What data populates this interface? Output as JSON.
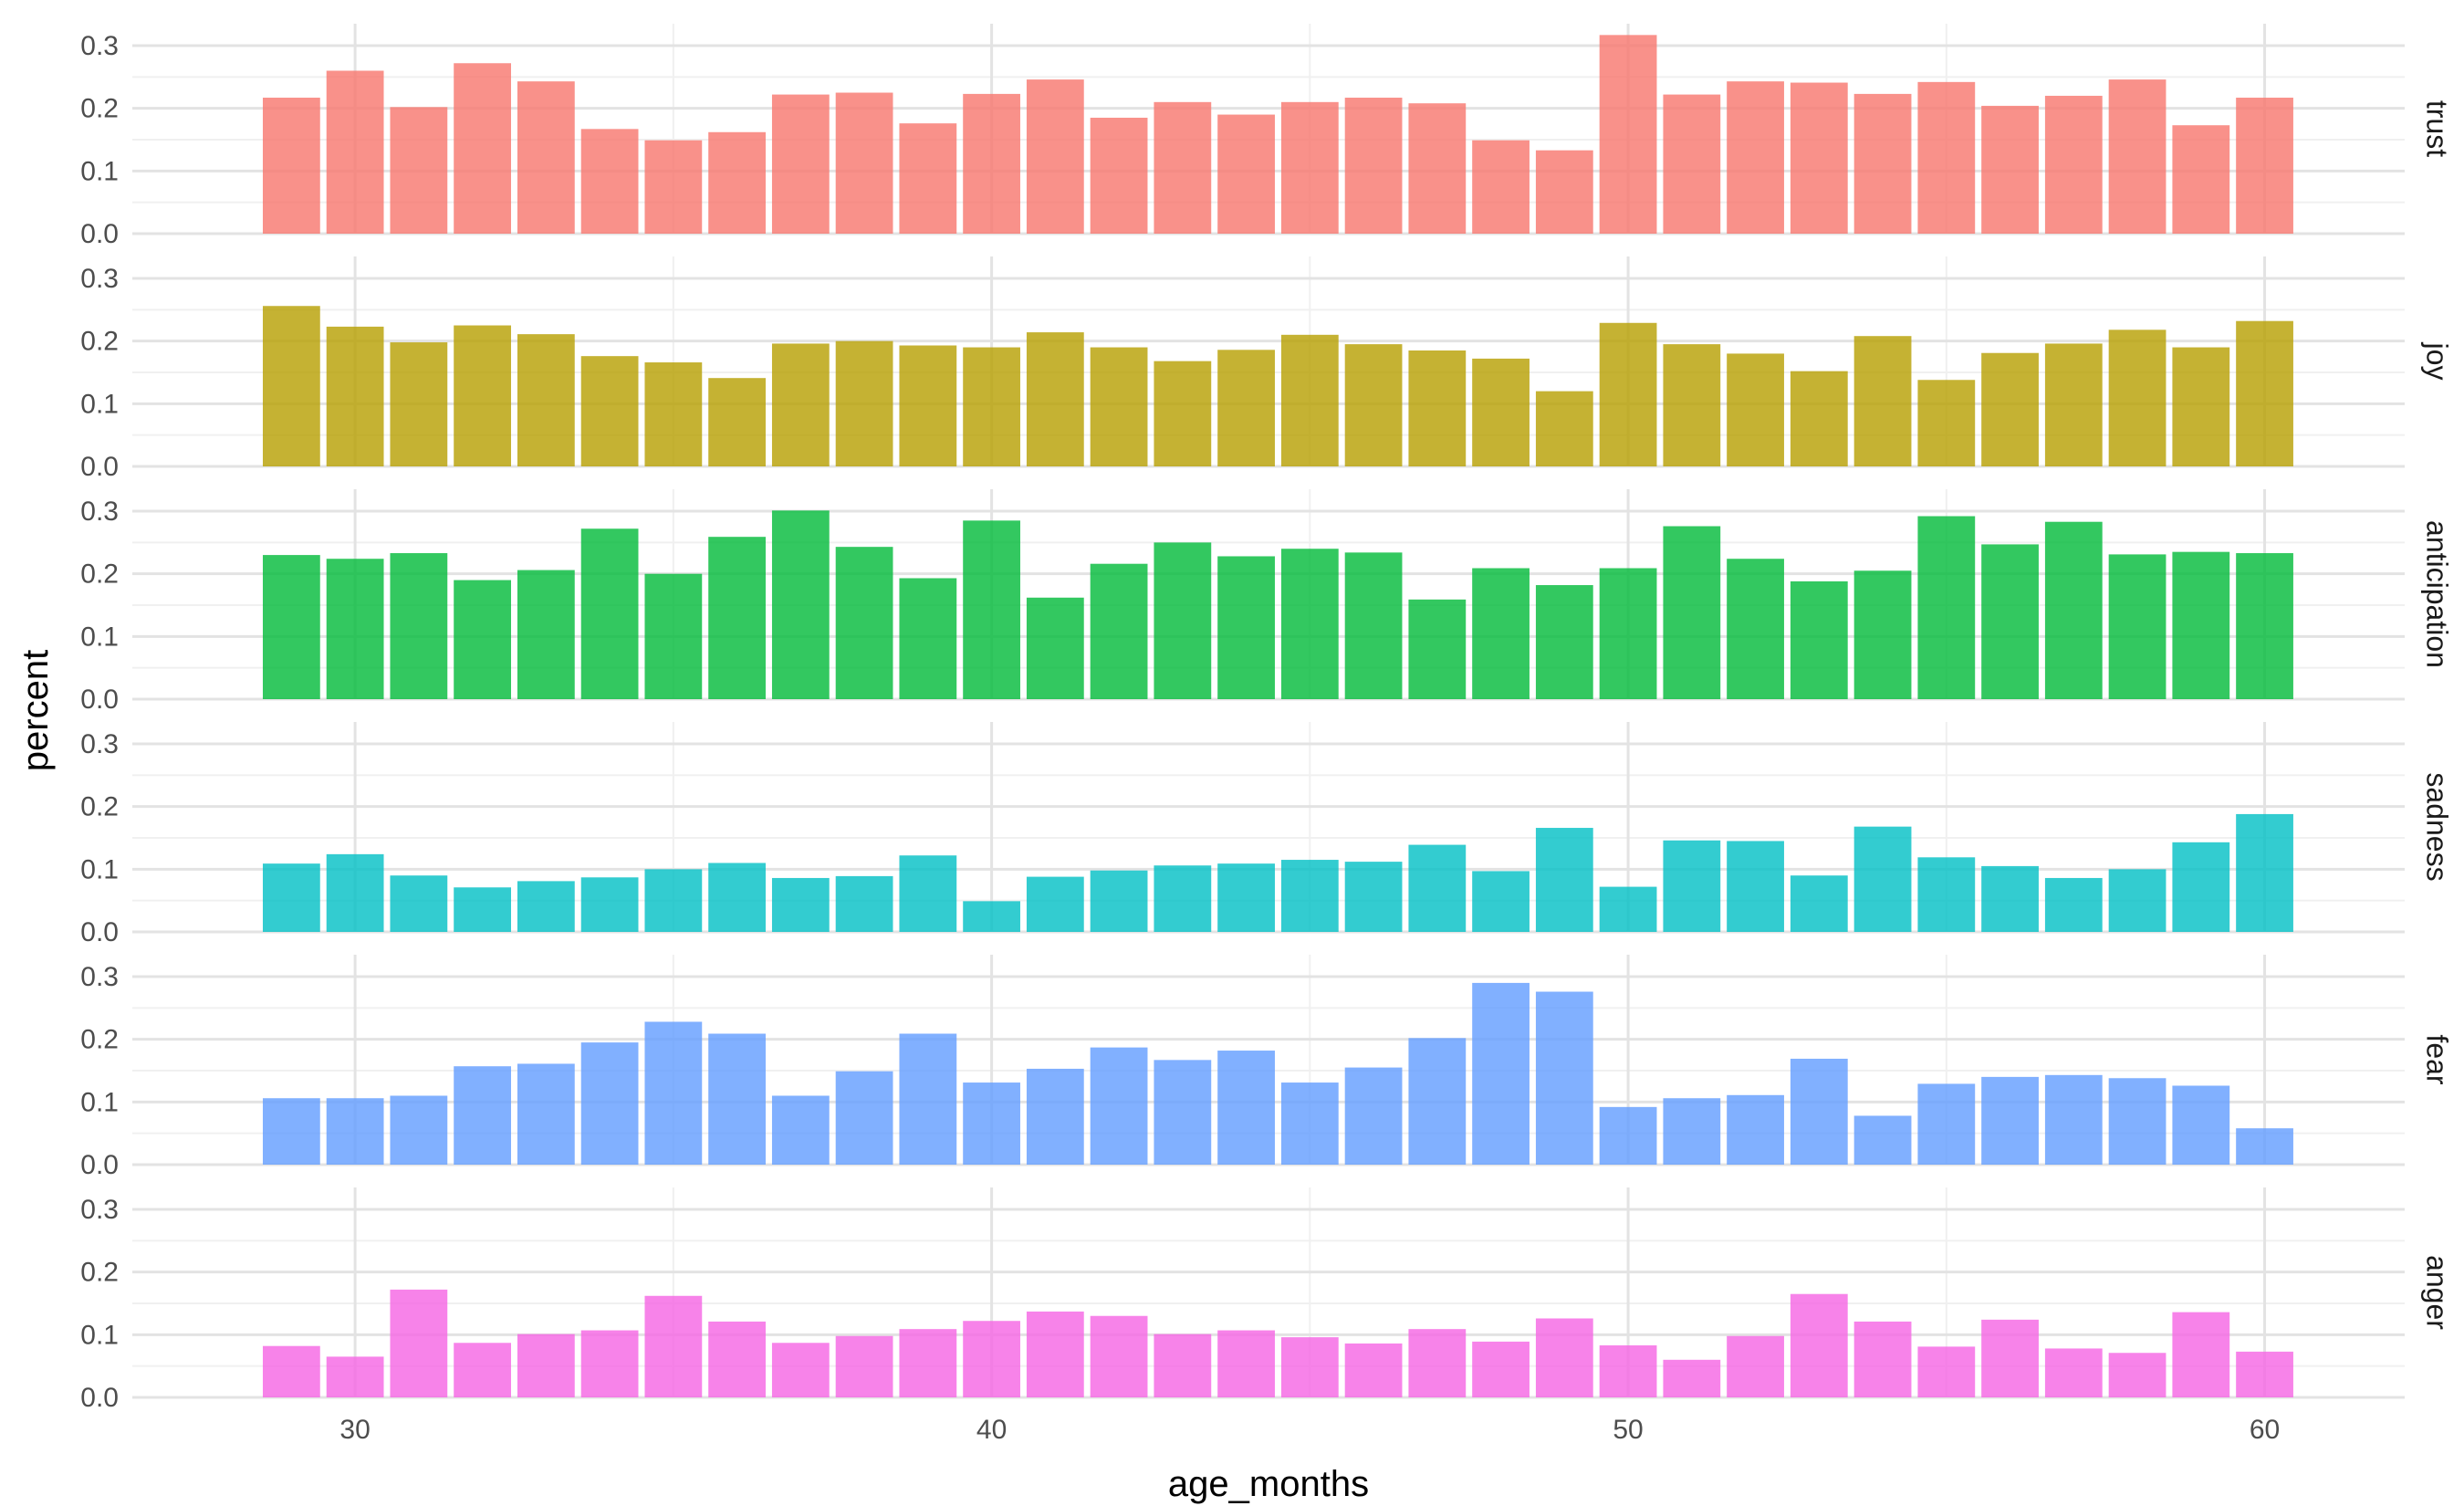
{
  "chart_data": {
    "type": "bar",
    "layout": "facet-rows",
    "xlabel": "age_months",
    "ylabel": "percent",
    "xlim": [
      26.5,
      62.2
    ],
    "x_ticks": [
      30,
      40,
      50,
      60
    ],
    "ylim": [
      0,
      0.335
    ],
    "y_ticks": [
      0.0,
      0.1,
      0.2,
      0.3
    ],
    "y_tick_labels": [
      "0.0",
      "0.1",
      "0.2",
      "0.3"
    ],
    "grid": true,
    "legend": "none",
    "x": [
      29,
      30,
      31,
      32,
      33,
      34,
      35,
      36,
      37,
      38,
      39,
      40,
      41,
      42,
      43,
      44,
      45,
      46,
      47,
      48,
      49,
      50,
      51,
      52,
      53,
      54,
      55,
      56,
      57,
      58,
      59,
      60
    ],
    "series": [
      {
        "name": "trust",
        "color": "#F8766D",
        "values": [
          0.217,
          0.26,
          0.202,
          0.272,
          0.243,
          0.167,
          0.149,
          0.162,
          0.222,
          0.225,
          0.176,
          0.223,
          0.246,
          0.185,
          0.21,
          0.19,
          0.21,
          0.217,
          0.208,
          0.149,
          0.133,
          0.317,
          0.222,
          0.243,
          0.241,
          0.223,
          0.242,
          0.204,
          0.22,
          0.246,
          0.173,
          0.217
        ]
      },
      {
        "name": "joy",
        "color": "#B79F00",
        "values": [
          0.256,
          0.223,
          0.198,
          0.225,
          0.211,
          0.176,
          0.166,
          0.141,
          0.196,
          0.2,
          0.193,
          0.19,
          0.214,
          0.19,
          0.168,
          0.186,
          0.21,
          0.195,
          0.185,
          0.172,
          0.12,
          0.229,
          0.195,
          0.18,
          0.152,
          0.208,
          0.138,
          0.181,
          0.196,
          0.218,
          0.19,
          0.232
        ]
      },
      {
        "name": "anticipation",
        "color": "#00BA38",
        "values": [
          0.23,
          0.224,
          0.233,
          0.19,
          0.206,
          0.272,
          0.2,
          0.259,
          0.301,
          0.243,
          0.193,
          0.285,
          0.162,
          0.216,
          0.25,
          0.228,
          0.24,
          0.234,
          0.159,
          0.209,
          0.182,
          0.209,
          0.276,
          0.224,
          0.188,
          0.205,
          0.292,
          0.247,
          0.283,
          0.231,
          0.235,
          0.233
        ]
      },
      {
        "name": "sadness",
        "color": "#00BFC4",
        "values": [
          0.109,
          0.124,
          0.09,
          0.071,
          0.081,
          0.087,
          0.1,
          0.11,
          0.086,
          0.089,
          0.122,
          0.049,
          0.088,
          0.098,
          0.106,
          0.109,
          0.115,
          0.112,
          0.139,
          0.097,
          0.166,
          0.072,
          0.146,
          0.145,
          0.09,
          0.168,
          0.119,
          0.105,
          0.086,
          0.1,
          0.143,
          0.188
        ]
      },
      {
        "name": "fear",
        "color": "#619CFF",
        "values": [
          0.106,
          0.106,
          0.11,
          0.157,
          0.161,
          0.195,
          0.228,
          0.209,
          0.11,
          0.149,
          0.209,
          0.131,
          0.153,
          0.187,
          0.167,
          0.182,
          0.131,
          0.155,
          0.202,
          0.29,
          0.276,
          0.092,
          0.106,
          0.111,
          0.169,
          0.078,
          0.129,
          0.14,
          0.143,
          0.138,
          0.126,
          0.058
        ]
      },
      {
        "name": "anger",
        "color": "#F564E3",
        "values": [
          0.082,
          0.065,
          0.172,
          0.087,
          0.101,
          0.107,
          0.162,
          0.121,
          0.087,
          0.098,
          0.109,
          0.122,
          0.137,
          0.13,
          0.101,
          0.107,
          0.096,
          0.086,
          0.109,
          0.089,
          0.126,
          0.083,
          0.06,
          0.098,
          0.165,
          0.121,
          0.081,
          0.124,
          0.078,
          0.071,
          0.136,
          0.073
        ]
      }
    ]
  }
}
